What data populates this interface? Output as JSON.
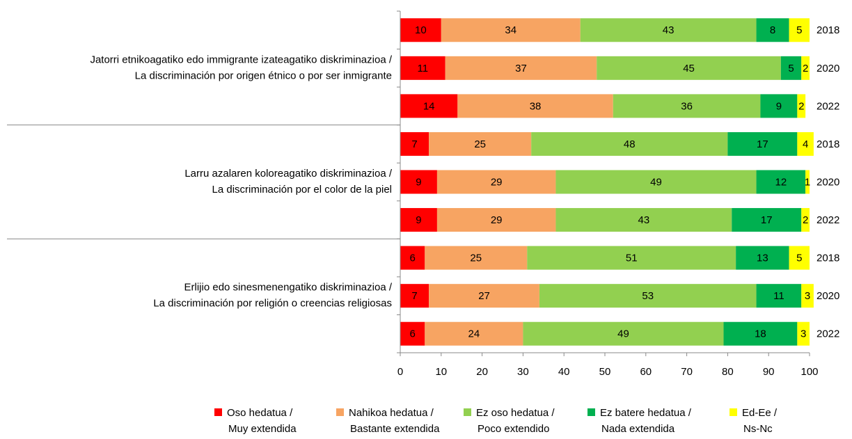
{
  "chart_data": {
    "type": "stacked-bar-horizontal",
    "categories": [
      "2018",
      "2020",
      "2022",
      "2018",
      "2020",
      "2022",
      "2018",
      "2020",
      "2022"
    ],
    "groups": [
      {
        "label": [
          "Jatorri etnikoagatiko  edo immigrante izateagatiko diskriminazioa /",
          "La discriminación por origen étnico o por ser inmigrante"
        ]
      },
      {
        "label": [
          "Larru azalaren koloreagatiko diskriminazioa /",
          "La discriminación por el color de la piel"
        ]
      },
      {
        "label": [
          "Erlijio edo sinesmenengatiko diskriminazioa /",
          "La discriminación por religión o creencias religiosas"
        ]
      }
    ],
    "series": [
      {
        "name": [
          "Oso hedatua /",
          "Muy extendida"
        ],
        "color": "#ff0000",
        "values": [
          10,
          11,
          14,
          7,
          9,
          9,
          6,
          7,
          6
        ]
      },
      {
        "name": [
          "Nahikoa hedatua /",
          "Bastante extendida"
        ],
        "color": "#f7a462",
        "values": [
          34,
          37,
          38,
          25,
          29,
          29,
          25,
          27,
          24
        ]
      },
      {
        "name": [
          "Ez oso hedatua /",
          "Poco extendido"
        ],
        "color": "#92d050",
        "values": [
          43,
          45,
          36,
          48,
          49,
          43,
          51,
          53,
          49
        ]
      },
      {
        "name": [
          "Ez batere hedatua /",
          "Nada extendida"
        ],
        "color": "#00b050",
        "values": [
          8,
          5,
          9,
          17,
          12,
          17,
          13,
          11,
          18
        ]
      },
      {
        "name": [
          "Ed-Ee /",
          "Ns-Nc"
        ],
        "color": "#ffff00",
        "values": [
          5,
          2,
          2,
          4,
          1,
          2,
          5,
          3,
          3
        ]
      }
    ],
    "xlim": [
      0,
      100
    ],
    "xticks": [
      0,
      10,
      20,
      30,
      40,
      50,
      60,
      70,
      80,
      90,
      100
    ]
  }
}
